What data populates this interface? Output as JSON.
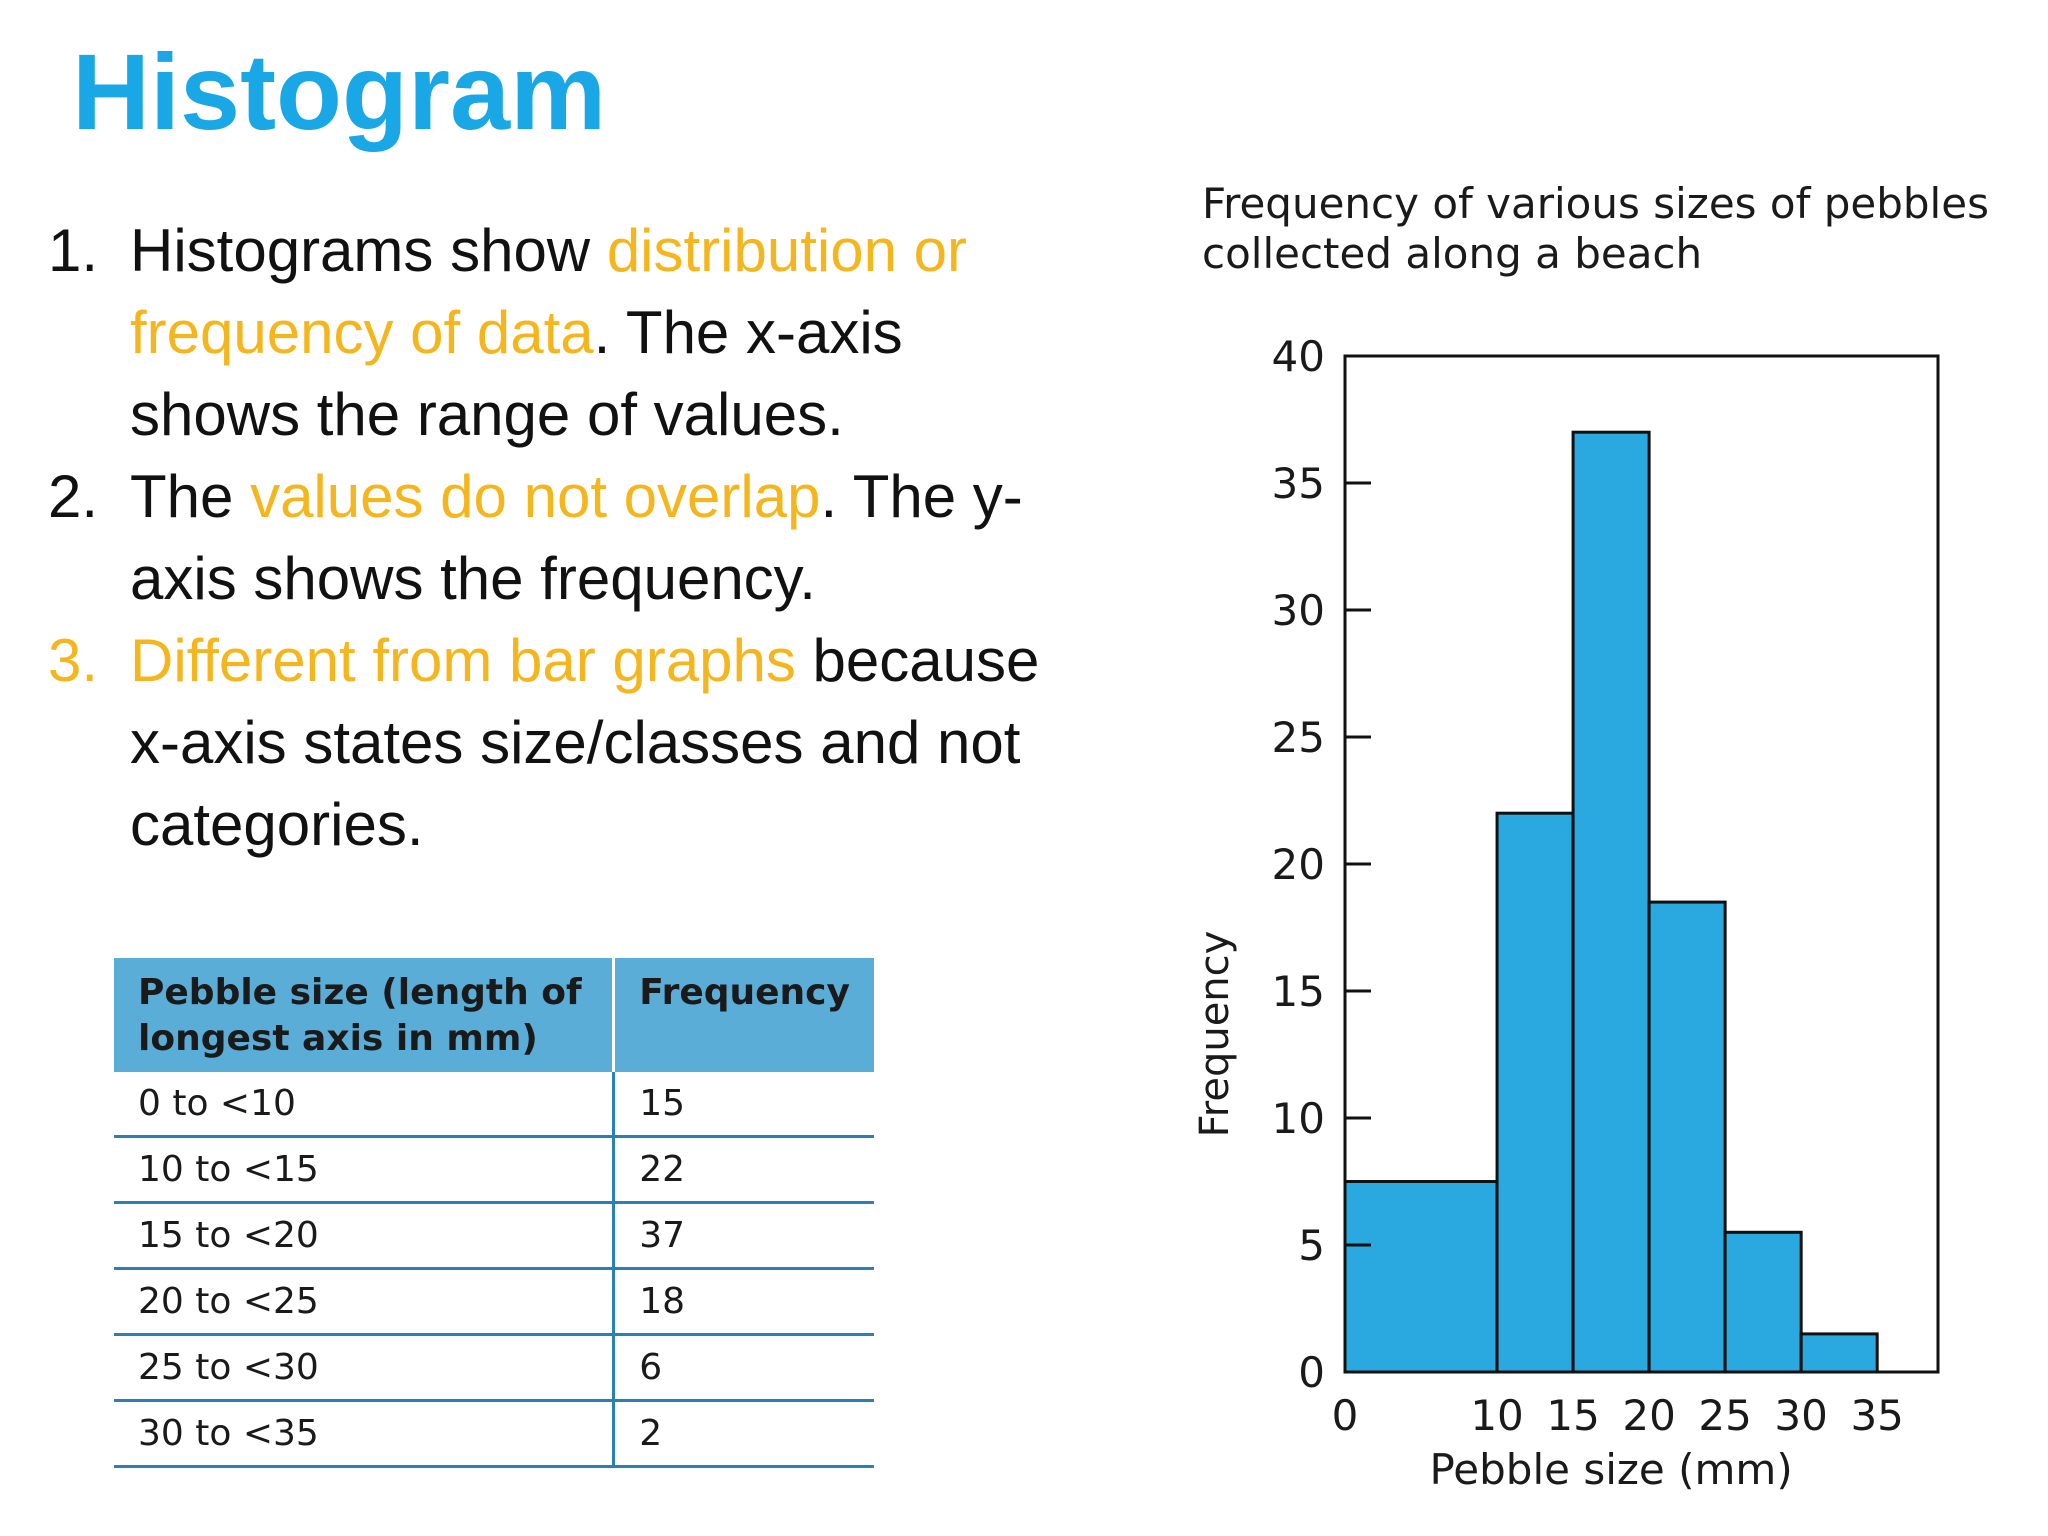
{
  "slide": {
    "title": "Histogram",
    "bullets": [
      {
        "num": "1.",
        "parts": [
          {
            "text": " Histograms show ",
            "hl": false
          },
          {
            "text": "distribution or frequency of data",
            "hl": true
          },
          {
            "text": ". The x-axis shows the range of values.",
            "hl": false
          }
        ]
      },
      {
        "num": "2.",
        "parts": [
          {
            "text": "The ",
            "hl": false
          },
          {
            "text": "values do not overlap",
            "hl": true
          },
          {
            "text": ". The y-axis shows the frequency.",
            "hl": false
          }
        ]
      },
      {
        "num": "3.",
        "num_hl": true,
        "parts": [
          {
            "text": "Different from bar graphs",
            "hl": true
          },
          {
            "text": " because x-axis states size/classes and not categories.",
            "hl": false
          }
        ]
      }
    ]
  },
  "table": {
    "headers": [
      "Pebble size (length of longest axis in mm)",
      "Frequency"
    ],
    "rows": [
      [
        "0 to <10",
        "15"
      ],
      [
        "10 to <15",
        "22"
      ],
      [
        "15 to <20",
        "37"
      ],
      [
        "20 to <25",
        "18"
      ],
      [
        "25 to <30",
        "6"
      ],
      [
        "30 to <35",
        "2"
      ]
    ]
  },
  "chart_data": {
    "type": "bar",
    "title": "Frequency of various sizes of pebbles collected along a beach",
    "title_lines": [
      "Frequency of various sizes of pebbles",
      "collected along a beach"
    ],
    "xlabel": "Pebble size (mm)",
    "ylabel": "Frequency",
    "bins": [
      {
        "x0": 0,
        "x1": 10,
        "value": 7.5
      },
      {
        "x0": 10,
        "x1": 15,
        "value": 22
      },
      {
        "x0": 15,
        "x1": 20,
        "value": 37
      },
      {
        "x0": 20,
        "x1": 25,
        "value": 18.5
      },
      {
        "x0": 25,
        "x1": 30,
        "value": 5.5
      },
      {
        "x0": 30,
        "x1": 35,
        "value": 1.5
      }
    ],
    "xlim": [
      0,
      39
    ],
    "ylim": [
      0,
      40
    ],
    "xticks": [
      0,
      10,
      15,
      20,
      25,
      30,
      35
    ],
    "yticks": [
      0,
      5,
      10,
      15,
      20,
      25,
      30,
      35,
      40
    ],
    "bar_color": "#2aa9e0",
    "grid": false
  }
}
